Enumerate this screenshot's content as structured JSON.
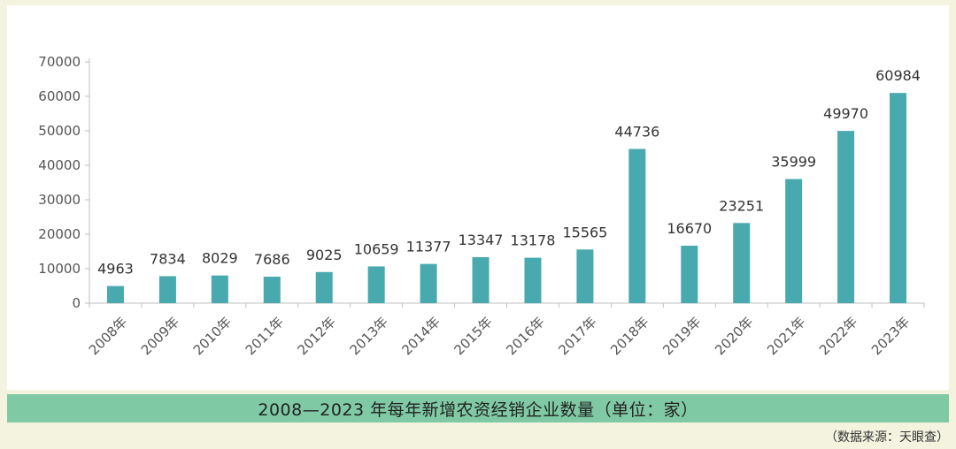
{
  "caption": "2008—2023 年每年新增农资经销企业数量（单位：家）",
  "source": "（数据来源：天眼查）",
  "colors": {
    "bar": "#48a9ae",
    "caption_bg": "#7fcaa4",
    "page_bg": "#f3f3e0"
  },
  "chart_data": {
    "type": "bar",
    "categories": [
      "2008年",
      "2009年",
      "2010年",
      "2011年",
      "2012年",
      "2013年",
      "2014年",
      "2015年",
      "2016年",
      "2017年",
      "2018年",
      "2019年",
      "2020年",
      "2021年",
      "2022年",
      "2023年"
    ],
    "values": [
      4963,
      7834,
      8029,
      7686,
      9025,
      10659,
      11377,
      13347,
      13178,
      15565,
      44736,
      16670,
      23251,
      35999,
      49970,
      60984
    ],
    "ylim": [
      0,
      70000
    ],
    "yticks": [
      0,
      10000,
      20000,
      30000,
      40000,
      50000,
      60000,
      70000
    ],
    "grid": false,
    "data_labels": true
  }
}
